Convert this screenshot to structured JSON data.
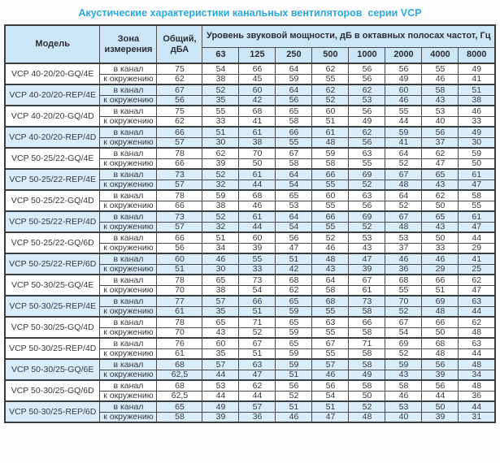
{
  "title": "Акустические характеристики канальных вентиляторов  серии VCP",
  "colors": {
    "title": "#29a9e0",
    "header_bg": "#cbe7f7",
    "shaded_row_bg": "#d8edf9",
    "border": "#4a4a4a"
  },
  "table": {
    "headers": {
      "model": "Модель",
      "zone": "Зона измерения",
      "total": "Общий, дБА",
      "spectrum": "Уровень звуковой мощности, дБ в октавных полосах частот, Гц",
      "frequencies": [
        "63",
        "125",
        "250",
        "500",
        "1000",
        "2000",
        "4000",
        "8000"
      ]
    },
    "zone_labels": {
      "duct": "в канал",
      "ambient": "к окружению"
    },
    "rows": [
      {
        "model": "VCP 40-20/20-GQ/4E",
        "shaded": false,
        "duct": {
          "total": "75",
          "bands": [
            54,
            66,
            64,
            62,
            56,
            56,
            55,
            49
          ]
        },
        "ambient": {
          "total": "62",
          "bands": [
            38,
            45,
            59,
            55,
            56,
            49,
            46,
            41
          ]
        }
      },
      {
        "model": "VCP 40-20/20-REP/4E",
        "shaded": true,
        "duct": {
          "total": "67",
          "bands": [
            52,
            60,
            64,
            62,
            62,
            60,
            58,
            51
          ]
        },
        "ambient": {
          "total": "56",
          "bands": [
            35,
            42,
            56,
            52,
            53,
            46,
            43,
            38
          ]
        }
      },
      {
        "model": "VCP 40-20/20-GQ/4D",
        "shaded": false,
        "duct": {
          "total": "75",
          "bands": [
            55,
            68,
            65,
            60,
            56,
            55,
            53,
            46
          ]
        },
        "ambient": {
          "total": "62",
          "bands": [
            33,
            41,
            58,
            51,
            49,
            44,
            40,
            33
          ]
        }
      },
      {
        "model": "VCP 40-20/20-REP/4D",
        "shaded": true,
        "duct": {
          "total": "66",
          "bands": [
            51,
            61,
            66,
            61,
            62,
            59,
            56,
            49
          ]
        },
        "ambient": {
          "total": "57",
          "bands": [
            30,
            38,
            55,
            48,
            56,
            41,
            37,
            30
          ]
        }
      },
      {
        "model": "VCP 50-25/22-GQ/4E",
        "shaded": false,
        "duct": {
          "total": "78",
          "bands": [
            62,
            70,
            67,
            59,
            63,
            64,
            62,
            59
          ]
        },
        "ambient": {
          "total": "66",
          "bands": [
            39,
            50,
            58,
            58,
            55,
            52,
            47,
            50
          ]
        }
      },
      {
        "model": "VCP 50-25/22-REP/4E",
        "shaded": true,
        "duct": {
          "total": "73",
          "bands": [
            52,
            61,
            64,
            66,
            69,
            67,
            65,
            61
          ]
        },
        "ambient": {
          "total": "57",
          "bands": [
            32,
            44,
            54,
            55,
            52,
            48,
            43,
            47
          ]
        }
      },
      {
        "model": "VCP 50-25/22-GQ/4D",
        "shaded": false,
        "duct": {
          "total": "78",
          "bands": [
            59,
            68,
            65,
            60,
            63,
            64,
            62,
            58
          ]
        },
        "ambient": {
          "total": "66",
          "bands": [
            38,
            46,
            53,
            55,
            56,
            52,
            50,
            55
          ]
        }
      },
      {
        "model": "VCP 50-25/22-REP/4D",
        "shaded": true,
        "duct": {
          "total": "73",
          "bands": [
            52,
            61,
            64,
            66,
            69,
            67,
            65,
            61
          ]
        },
        "ambient": {
          "total": "57",
          "bands": [
            32,
            44,
            54,
            55,
            52,
            48,
            43,
            47
          ]
        }
      },
      {
        "model": "VCP 50-25/22-GQ/6D",
        "shaded": false,
        "duct": {
          "total": "66",
          "bands": [
            51,
            60,
            56,
            52,
            53,
            53,
            50,
            44
          ]
        },
        "ambient": {
          "total": "56",
          "bands": [
            34,
            39,
            47,
            46,
            43,
            37,
            33,
            29
          ]
        }
      },
      {
        "model": "VCP 50-25/22-REP/6D",
        "shaded": true,
        "duct": {
          "total": "60",
          "bands": [
            46,
            55,
            51,
            48,
            47,
            46,
            46,
            41
          ]
        },
        "ambient": {
          "total": "51",
          "bands": [
            30,
            33,
            42,
            43,
            39,
            36,
            29,
            25
          ]
        }
      },
      {
        "model": "VCP 50-30/25-GQ/4E",
        "shaded": false,
        "duct": {
          "total": "78",
          "bands": [
            65,
            73,
            68,
            64,
            67,
            68,
            66,
            62
          ]
        },
        "ambient": {
          "total": "70",
          "bands": [
            38,
            54,
            62,
            58,
            61,
            55,
            51,
            47
          ]
        }
      },
      {
        "model": "VCP 50-30/25-REP/4E",
        "shaded": true,
        "duct": {
          "total": "77",
          "bands": [
            57,
            66,
            65,
            68,
            73,
            70,
            69,
            63
          ]
        },
        "ambient": {
          "total": "61",
          "bands": [
            35,
            51,
            59,
            55,
            58,
            52,
            48,
            44
          ]
        }
      },
      {
        "model": "VCP 50-30/25-GQ/4D",
        "shaded": false,
        "duct": {
          "total": "78",
          "bands": [
            65,
            71,
            65,
            63,
            66,
            67,
            66,
            62
          ]
        },
        "ambient": {
          "total": "70",
          "bands": [
            43,
            52,
            59,
            55,
            58,
            54,
            50,
            48
          ]
        }
      },
      {
        "model": "VCP 50-30/25-REP/4D",
        "shaded": false,
        "duct": {
          "total": "76",
          "bands": [
            60,
            67,
            65,
            67,
            71,
            69,
            68,
            63
          ]
        },
        "ambient": {
          "total": "61",
          "bands": [
            35,
            51,
            59,
            55,
            58,
            52,
            48,
            44
          ]
        }
      },
      {
        "model": "VCP 50-30/25-GQ/6E",
        "shaded": true,
        "duct": {
          "total": "68",
          "bands": [
            57,
            63,
            59,
            57,
            58,
            59,
            56,
            48
          ]
        },
        "ambient": {
          "total": "62,5",
          "bands": [
            44,
            47,
            51,
            46,
            49,
            43,
            39,
            34
          ]
        }
      },
      {
        "model": "VCP 50-30/25-GQ/6D",
        "shaded": false,
        "duct": {
          "total": "68",
          "bands": [
            53,
            62,
            56,
            56,
            58,
            58,
            56,
            48
          ]
        },
        "ambient": {
          "total": "62,5",
          "bands": [
            44,
            44,
            52,
            54,
            50,
            46,
            44,
            36
          ]
        }
      },
      {
        "model": "VCP 50-30/25-REP/6D",
        "shaded": true,
        "duct": {
          "total": "65",
          "bands": [
            49,
            57,
            51,
            51,
            52,
            53,
            50,
            44
          ]
        },
        "ambient": {
          "total": "58",
          "bands": [
            39,
            36,
            46,
            47,
            48,
            40,
            39,
            31
          ]
        }
      }
    ]
  }
}
